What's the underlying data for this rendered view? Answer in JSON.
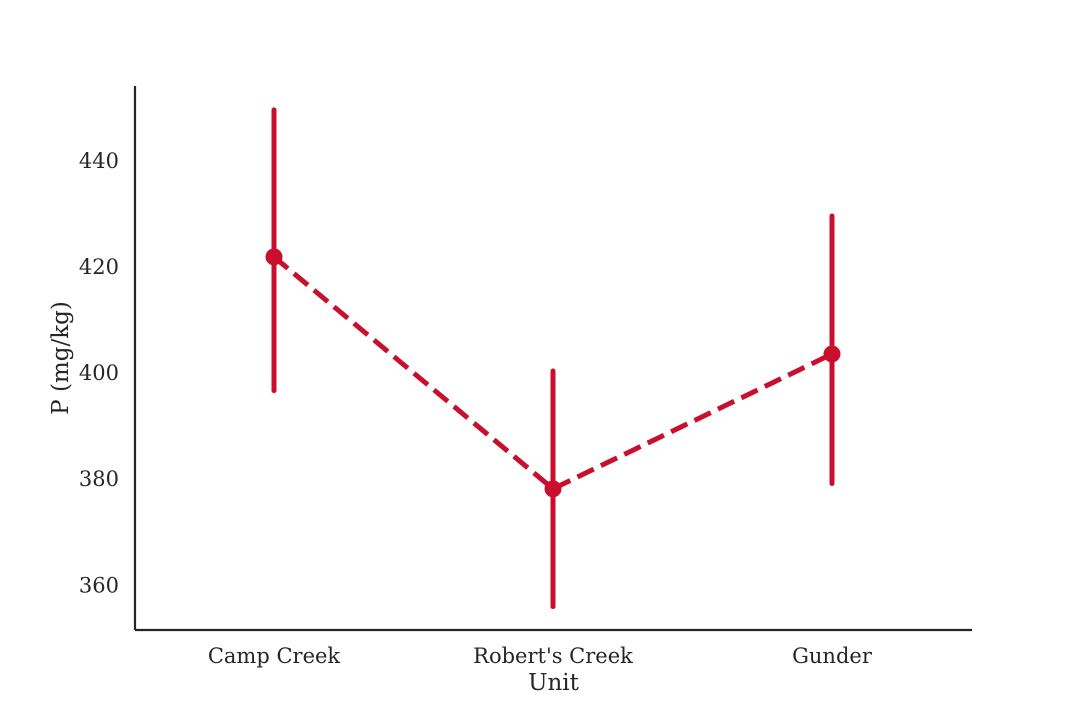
{
  "chart_data": {
    "type": "line",
    "xlabel": "Unit",
    "ylabel": "P (mg/kg)",
    "categories": [
      "Camp Creek",
      "Robert's Creek",
      "Gunder"
    ],
    "series": [
      {
        "values": [
          421.8,
          378.1,
          403.5
        ],
        "ci_low": [
          396.6,
          355.9,
          379.1
        ],
        "ci_high": [
          449.5,
          400.3,
          429.5
        ],
        "color": "#c8102e",
        "line_style": "dashed"
      }
    ],
    "ylim": [
      351.5,
      454
    ],
    "yticks": [
      360,
      380,
      400,
      420,
      440
    ],
    "grid": false
  }
}
